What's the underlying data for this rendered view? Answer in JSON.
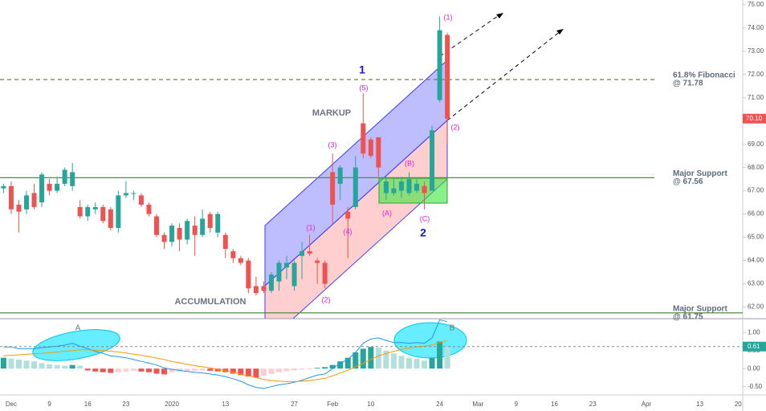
{
  "chart_data": [
    {
      "type": "candlestick",
      "categories": [
        null,
        "Dec",
        null,
        null,
        null,
        null,
        "9",
        null,
        null,
        null,
        null,
        "16",
        null,
        null,
        null,
        null,
        "23",
        null,
        null,
        null,
        null,
        null,
        "2020",
        null,
        null,
        null,
        null,
        null,
        null,
        "13",
        null,
        null,
        null,
        null,
        null,
        null,
        null,
        null,
        "27",
        null,
        null,
        null,
        null,
        "Feb",
        null,
        null,
        null,
        null,
        "10",
        null,
        null,
        null,
        null,
        null,
        null,
        null,
        null,
        "24",
        null,
        null,
        null,
        null,
        "Mar",
        null,
        null,
        null,
        null,
        "9",
        null,
        null,
        null,
        null,
        "16",
        null,
        null,
        null,
        null,
        "23",
        null,
        null,
        null,
        null,
        null,
        null,
        "Apr",
        null,
        null,
        null,
        null,
        null,
        null,
        "13",
        null,
        null,
        null,
        null,
        "20"
      ],
      "open": [
        67.1,
        67.2,
        66.4,
        66.2,
        66.9,
        66.5,
        67.3,
        67.0,
        67.3,
        67.2,
        66.3,
        65.9,
        66.2,
        66.3,
        66.2,
        65.4,
        66.8,
        66.9,
        66.8,
        66.4,
        65.9,
        65.1,
        64.8,
        65.4,
        64.9,
        65.5,
        65.1,
        66.0,
        65.2,
        65.1,
        64.4,
        64.1,
        64.0,
        62.9,
        62.9,
        62.7,
        63.1,
        63.7,
        62.9,
        64.2,
        64.4,
        64.0,
        63.9,
        67.8,
        67.3,
        66.1,
        66.3,
        69.9,
        69.2,
        69.3,
        66.9,
        66.9,
        67.0,
        66.9,
        67.0,
        67.2,
        67.0,
        70.9,
        73.7,
        null,
        null,
        null,
        null,
        null,
        null,
        null,
        null,
        null,
        null,
        null,
        null,
        null,
        null,
        null,
        null,
        null,
        null,
        null,
        null,
        null,
        null,
        null,
        null,
        null,
        null,
        null,
        null,
        null,
        null,
        null,
        null,
        null,
        null,
        null,
        null,
        null,
        null
      ],
      "high": [
        67.3,
        67.4,
        66.6,
        67.0,
        67.3,
        67.8,
        67.5,
        67.6,
        68.0,
        68.2,
        66.6,
        66.4,
        66.5,
        66.4,
        66.3,
        67.0,
        67.4,
        67.0,
        66.9,
        66.5,
        66.0,
        65.2,
        65.6,
        65.6,
        65.8,
        65.9,
        66.2,
        66.1,
        66.1,
        65.2,
        64.5,
        64.2,
        64.1,
        63.3,
        63.1,
        63.5,
        64.0,
        64.2,
        64.0,
        64.8,
        65.1,
        64.1,
        64.0,
        68.6,
        68.1,
        66.3,
        68.5,
        71.2,
        69.3,
        69.3,
        67.6,
        67.5,
        67.6,
        67.8,
        67.5,
        67.4,
        69.8,
        74.5,
        73.8,
        null,
        null,
        null,
        null,
        null,
        null,
        null,
        null,
        null,
        null,
        null,
        null,
        null,
        null,
        null,
        null,
        null,
        null,
        null,
        null,
        null,
        null,
        null,
        null,
        null,
        null,
        null,
        null,
        null,
        null,
        null,
        null,
        null,
        null,
        null,
        null,
        null,
        null
      ],
      "low": [
        66.9,
        66.0,
        65.2,
        66.0,
        66.2,
        66.3,
        66.8,
        66.9,
        67.2,
        67.0,
        65.8,
        65.7,
        66.0,
        65.6,
        65.3,
        65.2,
        66.7,
        66.6,
        66.3,
        65.9,
        65.0,
        64.5,
        64.6,
        64.4,
        64.7,
        64.2,
        65.0,
        65.2,
        65.0,
        64.1,
        63.9,
        63.8,
        62.6,
        62.5,
        62.6,
        62.6,
        62.7,
        63.2,
        62.7,
        63.2,
        64.2,
        63.0,
        62.8,
        65.6,
        66.6,
        64.1,
        66.2,
        68.4,
        68.4,
        67.6,
        66.6,
        66.8,
        66.7,
        66.8,
        66.9,
        66.2,
        67.0,
        70.8,
        69.0,
        null,
        null,
        null,
        null,
        null,
        null,
        null,
        null,
        null,
        null,
        null,
        null,
        null,
        null,
        null,
        null,
        null,
        null,
        null,
        null,
        null,
        null,
        null,
        null,
        null,
        null,
        null,
        null,
        null,
        null,
        null,
        null,
        null,
        null,
        null,
        null,
        null,
        null
      ],
      "close": [
        67.2,
        66.2,
        66.1,
        66.8,
        66.3,
        67.7,
        67.0,
        67.3,
        67.9,
        67.8,
        65.9,
        66.3,
        66.3,
        65.7,
        65.4,
        66.8,
        66.9,
        66.9,
        66.4,
        66.0,
        65.1,
        64.8,
        65.5,
        64.9,
        65.7,
        65.1,
        65.8,
        65.4,
        66.0,
        64.5,
        64.1,
        63.9,
        62.8,
        62.6,
        62.7,
        63.4,
        63.9,
        63.9,
        63.9,
        64.4,
        64.3,
        63.9,
        63.0,
        66.4,
        68.0,
        65.8,
        68.0,
        68.6,
        68.5,
        68.0,
        67.4,
        67.1,
        67.4,
        67.5,
        67.3,
        66.9,
        69.6,
        73.9,
        70.1,
        null,
        null,
        null,
        null,
        null,
        null,
        null,
        null,
        null,
        null,
        null,
        null,
        null,
        null,
        null,
        null,
        null,
        null,
        null,
        null,
        null,
        null,
        null,
        null,
        null,
        null,
        null,
        null,
        null,
        null,
        null,
        null,
        null,
        null,
        null,
        null,
        null,
        null
      ],
      "up_color": "#26a69a",
      "down_color": "#ef5350",
      "ylim": [
        61.5,
        75.2
      ],
      "yticks": [
        {
          "value": 62,
          "label": "62.00"
        },
        {
          "value": 63,
          "label": "63.00"
        },
        {
          "value": 64,
          "label": "64.00"
        },
        {
          "value": 65,
          "label": "65.00"
        },
        {
          "value": 66,
          "label": "66.00"
        },
        {
          "value": 67,
          "label": "67.00"
        },
        {
          "value": 68,
          "label": "68.00"
        },
        {
          "value": 69,
          "label": "69.00"
        },
        {
          "value": 70,
          "label": "70.00"
        },
        {
          "value": 71,
          "label": "71.00"
        },
        {
          "value": 72,
          "label": "72.00"
        },
        {
          "value": 73,
          "label": "73.00"
        },
        {
          "value": 74,
          "label": "74.00"
        },
        {
          "value": 75,
          "label": "75.00"
        }
      ],
      "grid": false,
      "last_price": {
        "value": 70.1,
        "label": "70.10"
      },
      "hlines": [
        {
          "value": 71.78,
          "label": "61.8% Fibonacci",
          "sublabel": "@ 71.78",
          "color": "#7a7a55",
          "style": "dashed"
        },
        {
          "value": 67.56,
          "label": "Major Support",
          "sublabel": "@ 67.56",
          "color": "#4f8f3f",
          "style": "solid"
        },
        {
          "value": 61.75,
          "label": "Major Support",
          "sublabel": "@ 61.75",
          "color": "#4f8f3f",
          "style": "solid"
        }
      ],
      "annotations": [
        "MARKUP",
        "ACCUMULATION",
        "1",
        "2",
        "(1)",
        "(5)",
        "(3)",
        "(1)",
        "(4)",
        "(2)",
        "(2)",
        "(B)",
        "(A)",
        "(C)"
      ]
    },
    {
      "type": "macd",
      "series": [
        {
          "name": "Histogram",
          "kind": "histogram",
          "values": [
            0.3,
            0.28,
            0.25,
            0.22,
            0.2,
            0.15,
            0.12,
            0.1,
            0.08,
            0.1,
            0.08,
            -0.05,
            -0.08,
            -0.1,
            -0.12,
            -0.1,
            -0.08,
            -0.06,
            -0.08,
            -0.1,
            -0.14,
            -0.16,
            -0.1,
            -0.08,
            -0.07,
            -0.06,
            -0.05,
            -0.06,
            -0.08,
            -0.1,
            -0.14,
            -0.18,
            -0.22,
            -0.25,
            -0.2,
            -0.15,
            -0.1,
            -0.07,
            -0.05,
            -0.03,
            -0.02,
            0.02,
            0.04,
            0.1,
            0.2,
            0.3,
            0.45,
            0.55,
            0.6,
            0.58,
            0.5,
            0.42,
            0.35,
            0.3,
            0.27,
            0.22,
            0.3,
            0.75,
            0.61,
            null,
            null,
            null,
            null,
            null,
            null,
            null,
            null,
            null,
            null,
            null,
            null,
            null,
            null,
            null,
            null,
            null,
            null,
            null,
            null,
            null,
            null,
            null,
            null,
            null,
            null,
            null,
            null,
            null,
            null,
            null,
            null,
            null,
            null,
            null,
            null,
            null,
            null
          ]
        },
        {
          "name": "MACD",
          "kind": "line",
          "color": "#2196f3",
          "values": [
            0.6,
            0.6,
            0.55,
            0.55,
            0.55,
            0.58,
            0.6,
            0.62,
            0.65,
            0.7,
            0.62,
            0.55,
            0.48,
            0.42,
            0.35,
            0.33,
            0.3,
            0.25,
            0.2,
            0.15,
            0.1,
            0.02,
            -0.02,
            -0.05,
            -0.08,
            -0.1,
            -0.12,
            -0.15,
            -0.18,
            -0.22,
            -0.28,
            -0.35,
            -0.45,
            -0.52,
            -0.55,
            -0.5,
            -0.45,
            -0.42,
            -0.38,
            -0.32,
            -0.25,
            -0.18,
            -0.15,
            0.0,
            0.15,
            0.25,
            0.45,
            0.7,
            0.82,
            0.85,
            0.78,
            0.72,
            0.72,
            0.7,
            0.72,
            0.7,
            0.85,
            1.35,
            1.3,
            null,
            null,
            null,
            null,
            null,
            null,
            null,
            null,
            null,
            null,
            null,
            null,
            null,
            null,
            null,
            null,
            null,
            null,
            null,
            null,
            null,
            null,
            null,
            null,
            null,
            null,
            null,
            null,
            null,
            null,
            null,
            null,
            null,
            null,
            null,
            null,
            null,
            null
          ]
        },
        {
          "name": "Signal",
          "kind": "line",
          "color": "#ff9800",
          "values": [
            0.35,
            0.37,
            0.38,
            0.4,
            0.41,
            0.42,
            0.44,
            0.46,
            0.48,
            0.5,
            0.52,
            0.52,
            0.51,
            0.5,
            0.48,
            0.46,
            0.43,
            0.4,
            0.37,
            0.33,
            0.29,
            0.25,
            0.2,
            0.16,
            0.12,
            0.08,
            0.05,
            0.02,
            -0.02,
            -0.06,
            -0.1,
            -0.15,
            -0.2,
            -0.25,
            -0.3,
            -0.33,
            -0.35,
            -0.36,
            -0.36,
            -0.35,
            -0.33,
            -0.3,
            -0.27,
            -0.2,
            -0.12,
            -0.05,
            0.05,
            0.15,
            0.25,
            0.35,
            0.42,
            0.48,
            0.53,
            0.57,
            0.6,
            0.62,
            0.65,
            0.72,
            0.78,
            null,
            null,
            null,
            null,
            null,
            null,
            null,
            null,
            null,
            null,
            null,
            null,
            null,
            null,
            null,
            null,
            null,
            null,
            null,
            null,
            null,
            null,
            null,
            null,
            null,
            null,
            null,
            null,
            null,
            null,
            null,
            null,
            null,
            null,
            null,
            null,
            null,
            null
          ]
        }
      ],
      "ylim": [
        -0.73,
        1.36
      ],
      "yticks": [
        {
          "value": 1,
          "label": "1.00"
        },
        {
          "value": 0.5,
          "label": "0.50"
        },
        {
          "value": 0,
          "label": "0.00"
        },
        {
          "value": -0.5,
          "label": "-0.50"
        }
      ],
      "last_value": 0.61,
      "annotations": [
        "A",
        "B"
      ]
    }
  ]
}
